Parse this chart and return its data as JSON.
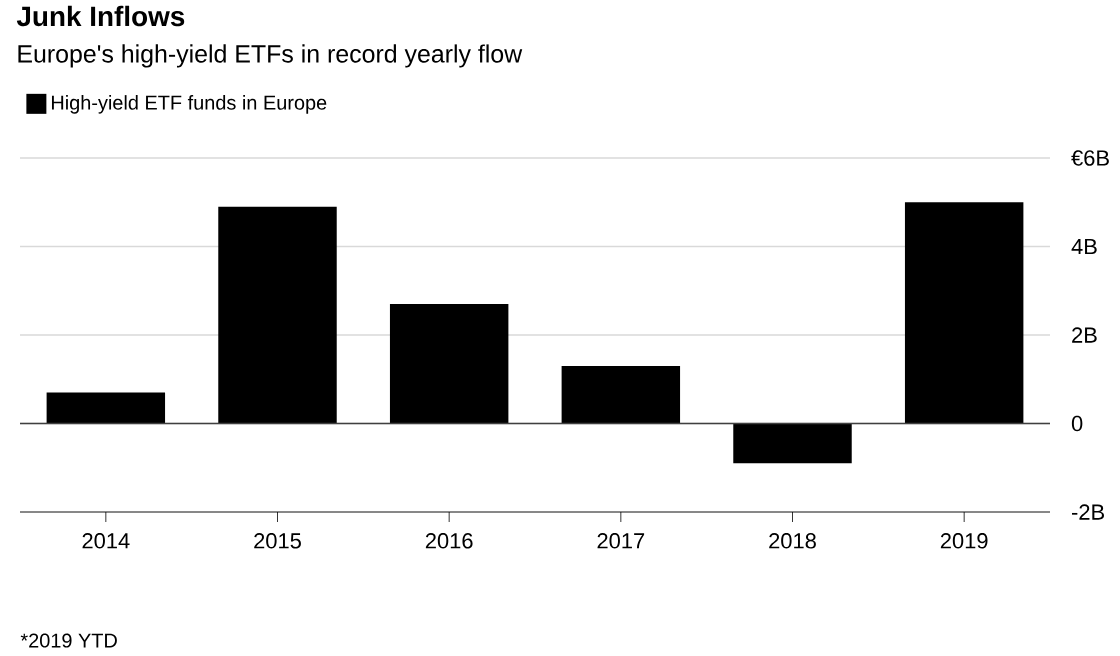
{
  "chart_data": {
    "type": "bar",
    "title": "Junk Inflows",
    "subtitle": "Europe's high-yield ETFs in record yearly flow",
    "categories": [
      "2014",
      "2015",
      "2016",
      "2017",
      "2018",
      "2019"
    ],
    "series": [
      {
        "name": "High-yield ETF funds in Europe",
        "color": "#000000",
        "values": [
          0.7,
          4.9,
          2.7,
          1.3,
          -0.9,
          5.0
        ]
      }
    ],
    "ylim": [
      -2,
      6
    ],
    "yticks": [
      {
        "value": -2,
        "label": "-2B"
      },
      0,
      {
        "value": 2,
        "label": "2B"
      },
      {
        "value": 4,
        "label": "4B"
      },
      {
        "value": 6,
        "label": "€6B"
      }
    ],
    "grid": "y",
    "legend": "top left",
    "annotations": [
      "*2019 YTD"
    ]
  }
}
